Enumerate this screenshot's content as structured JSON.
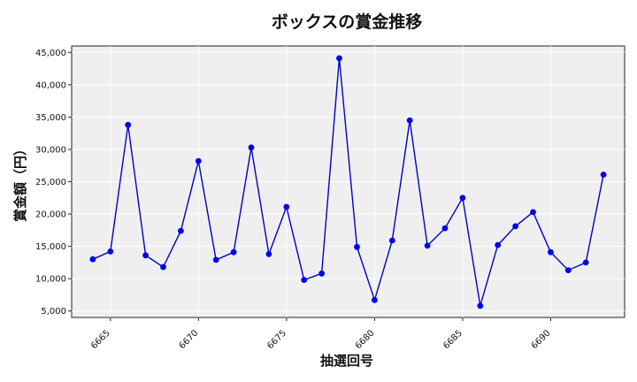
{
  "chart_data": {
    "type": "line",
    "title": "ボックスの賞金推移",
    "xlabel": "抽選回号",
    "ylabel": "賞金額（円）",
    "xlim": [
      6662.8,
      6694.2
    ],
    "ylim": [
      4000,
      46000
    ],
    "xticks": [
      6665,
      6670,
      6675,
      6680,
      6685,
      6690
    ],
    "yticks": [
      5000,
      10000,
      15000,
      20000,
      25000,
      30000,
      35000,
      40000,
      45000
    ],
    "ytick_labels": [
      "5,000",
      "10,000",
      "15,000",
      "20,000",
      "25,000",
      "30,000",
      "35,000",
      "40,000",
      "45,000"
    ],
    "grid": true,
    "line_color": "#0000cc",
    "marker_color": "#0000ee",
    "background_color": "#efefef",
    "x": [
      6664,
      6665,
      6666,
      6667,
      6668,
      6669,
      6670,
      6671,
      6672,
      6673,
      6674,
      6675,
      6676,
      6677,
      6678,
      6679,
      6680,
      6681,
      6682,
      6683,
      6684,
      6685,
      6686,
      6687,
      6688,
      6689,
      6690,
      6691,
      6692,
      6693
    ],
    "y": [
      13000,
      14200,
      33800,
      13600,
      11800,
      17400,
      28200,
      12900,
      14100,
      30300,
      13800,
      21100,
      9800,
      10800,
      44100,
      14900,
      6700,
      15900,
      34500,
      15100,
      17800,
      22500,
      5800,
      15200,
      18100,
      20300,
      14100,
      11300,
      12500,
      26100
    ]
  }
}
